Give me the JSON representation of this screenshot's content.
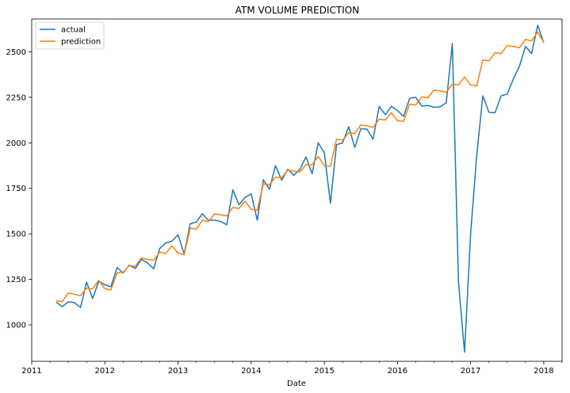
{
  "chart_data": {
    "type": "line",
    "title": "ATM VOLUME PREDICTION",
    "xlabel": "Date",
    "ylabel": "",
    "x_ticks": [
      "2011",
      "2012",
      "2013",
      "2014",
      "2015",
      "2016",
      "2017",
      "2018"
    ],
    "y_ticks": [
      1000,
      1250,
      1500,
      1750,
      2000,
      2250,
      2500
    ],
    "xlim": [
      "2011-01-01",
      "2018-04-01"
    ],
    "ylim": [
      800,
      2680
    ],
    "grid": false,
    "legend_position": "top-left",
    "x": [
      "2011-05",
      "2011-06",
      "2011-07",
      "2011-08",
      "2011-09",
      "2011-10",
      "2011-11",
      "2011-12",
      "2012-01",
      "2012-02",
      "2012-03",
      "2012-04",
      "2012-05",
      "2012-06",
      "2012-07",
      "2012-08",
      "2012-09",
      "2012-10",
      "2012-11",
      "2012-12",
      "2013-01",
      "2013-02",
      "2013-03",
      "2013-04",
      "2013-05",
      "2013-06",
      "2013-07",
      "2013-08",
      "2013-09",
      "2013-10",
      "2013-11",
      "2013-12",
      "2014-01",
      "2014-02",
      "2014-03",
      "2014-04",
      "2014-05",
      "2014-06",
      "2014-07",
      "2014-08",
      "2014-09",
      "2014-10",
      "2014-11",
      "2014-12",
      "2015-01",
      "2015-02",
      "2015-03",
      "2015-04",
      "2015-05",
      "2015-06",
      "2015-07",
      "2015-08",
      "2015-09",
      "2015-10",
      "2015-11",
      "2015-12",
      "2016-01",
      "2016-02",
      "2016-03",
      "2016-04",
      "2016-05",
      "2016-06",
      "2016-07",
      "2016-08",
      "2016-09",
      "2016-10",
      "2016-11",
      "2016-12",
      "2017-01",
      "2017-02",
      "2017-03",
      "2017-04",
      "2017-05",
      "2017-06",
      "2017-07",
      "2017-08",
      "2017-09",
      "2017-10",
      "2017-11",
      "2017-12",
      "2018-01"
    ],
    "series": [
      {
        "name": "actual",
        "color": "#1f77b4",
        "values": [
          1125,
          1100,
          1127,
          1123,
          1095,
          1235,
          1145,
          1240,
          1220,
          1210,
          1315,
          1285,
          1328,
          1310,
          1360,
          1340,
          1308,
          1420,
          1450,
          1460,
          1495,
          1390,
          1555,
          1565,
          1610,
          1575,
          1575,
          1568,
          1550,
          1742,
          1660,
          1700,
          1720,
          1575,
          1797,
          1745,
          1875,
          1795,
          1855,
          1822,
          1855,
          1923,
          1830,
          2000,
          1945,
          1668,
          1990,
          2000,
          2088,
          1975,
          2078,
          2075,
          2020,
          2200,
          2155,
          2200,
          2178,
          2145,
          2245,
          2250,
          2202,
          2205,
          2195,
          2198,
          2220,
          2545,
          1240,
          850,
          1500,
          1930,
          2258,
          2168,
          2165,
          2258,
          2268,
          2350,
          2420,
          2530,
          2490,
          2645,
          2550
        ]
      },
      {
        "name": "prediction",
        "color": "#ff7f0e",
        "values": [
          1133,
          1128,
          1175,
          1168,
          1160,
          1202,
          1198,
          1245,
          1198,
          1192,
          1285,
          1290,
          1325,
          1322,
          1368,
          1360,
          1355,
          1400,
          1392,
          1435,
          1395,
          1385,
          1532,
          1525,
          1575,
          1568,
          1610,
          1605,
          1598,
          1645,
          1640,
          1680,
          1635,
          1630,
          1775,
          1770,
          1812,
          1808,
          1850,
          1845,
          1840,
          1880,
          1880,
          1925,
          1875,
          1870,
          2020,
          2015,
          2055,
          2050,
          2098,
          2093,
          2085,
          2130,
          2125,
          2165,
          2122,
          2118,
          2212,
          2208,
          2252,
          2248,
          2290,
          2285,
          2278,
          2322,
          2318,
          2362,
          2318,
          2312,
          2455,
          2450,
          2495,
          2490,
          2535,
          2530,
          2522,
          2568,
          2560,
          2608,
          2552
        ]
      }
    ]
  }
}
